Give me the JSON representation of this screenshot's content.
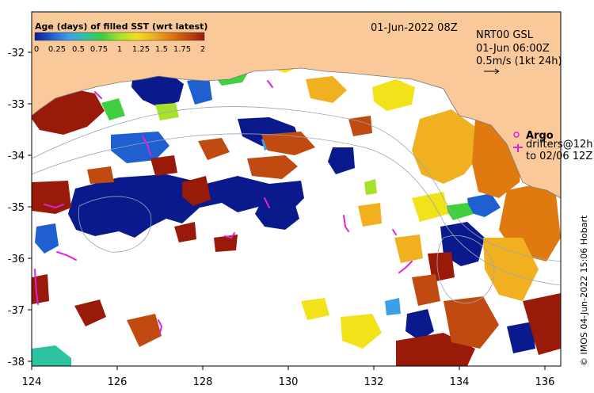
{
  "colorbar": {
    "title": "Age (days) of filled SST (wrt latest)",
    "ticks": [
      "0",
      "0.25",
      "0.5",
      "0.75",
      "1",
      "1.25",
      "1.5",
      "1.75",
      "2"
    ],
    "colors": [
      "#0a1a8c",
      "#1f5fd0",
      "#3aa0e8",
      "#2dc3a0",
      "#3fcf3f",
      "#a6e22a",
      "#f2e21a",
      "#f0b020",
      "#e07a10",
      "#c04a10",
      "#9a1a0a"
    ]
  },
  "header": {
    "date": "01-Jun-2022 08Z",
    "product": "NRT00 GSL",
    "current_time": "01-Jun 06:00Z",
    "scale": "0.5m/s (1kt 24h)"
  },
  "argo": {
    "label": "Argo",
    "drifters_line1": "drifters@12h",
    "drifters_line2": "to 02/06 12Z",
    "color": "#e020e0"
  },
  "credit": "© IMOS 04-Jun-2022 15:06 Hobart",
  "axes": {
    "x_ticks": [
      "124",
      "126",
      "128",
      "130",
      "132",
      "134",
      "136"
    ],
    "y_ticks": [
      "-32",
      "-33",
      "-34",
      "-35",
      "-36",
      "-37",
      "-38"
    ]
  },
  "land_color": "#f9c99a"
}
